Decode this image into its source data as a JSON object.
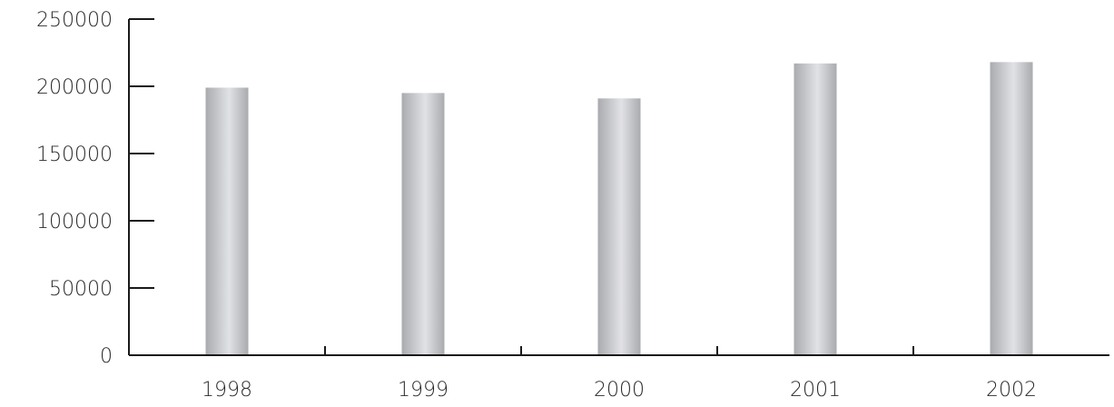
{
  "chart_data": {
    "type": "bar",
    "title": "",
    "xlabel": "",
    "ylabel": "",
    "categories": [
      "1998",
      "1999",
      "2000",
      "2001",
      "2002"
    ],
    "values": [
      199000,
      195000,
      191000,
      217000,
      218000
    ],
    "ylim": [
      0,
      250000
    ],
    "yticks": [
      "0",
      "50000",
      "100000",
      "150000",
      "200000",
      "250000"
    ],
    "grid": false,
    "legend": "none",
    "colors": {
      "bar_edge": "#a9abae",
      "bar_highlight": "#e1e2e6",
      "axis": "#1a1a1a"
    }
  }
}
